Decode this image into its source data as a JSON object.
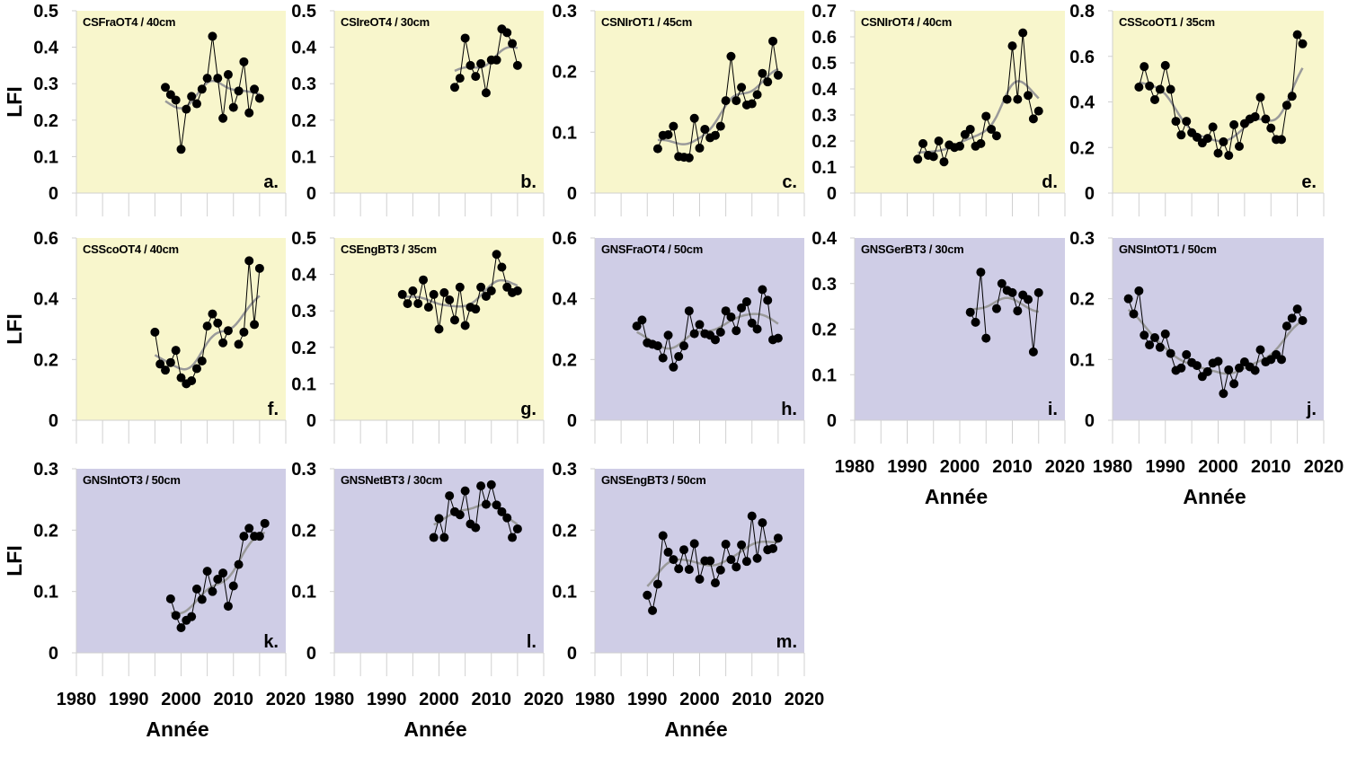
{
  "chart_data": {
    "type": "line",
    "ylabel": "LFI",
    "xlabel": "Année",
    "xlim": [
      1980,
      2020
    ],
    "xticks": [
      1980,
      1990,
      2000,
      2010,
      2020
    ],
    "colors": {
      "cs_background": "#f8f6cc",
      "gns_background": "#cfcde6",
      "points": "#000000",
      "trend": "#9a9a9a"
    },
    "panels": [
      {
        "id": "a.",
        "title": "CSFraOT4 / 40cm",
        "group": "cs",
        "ylim": [
          0,
          0.5
        ],
        "yticks": [
          0,
          0.1,
          0.2,
          0.3,
          0.4,
          0.5
        ],
        "start_year": 1997,
        "values": [
          0.29,
          0.27,
          0.255,
          0.12,
          0.23,
          0.265,
          0.245,
          0.285,
          0.315,
          0.43,
          0.315,
          0.205,
          0.325,
          0.235,
          0.28,
          0.36,
          0.22,
          0.285,
          0.26
        ]
      },
      {
        "id": "b.",
        "title": "CSIreOT4 / 30cm",
        "group": "cs",
        "ylim": [
          0,
          0.5
        ],
        "yticks": [
          0,
          0.1,
          0.2,
          0.3,
          0.4,
          0.5
        ],
        "start_year": 2003,
        "values": [
          0.29,
          0.315,
          0.425,
          0.35,
          0.32,
          0.355,
          0.275,
          0.365,
          0.365,
          0.45,
          0.44,
          0.41,
          0.35
        ]
      },
      {
        "id": "c.",
        "title": "CSNIrOT1 / 45cm",
        "group": "cs",
        "ylim": [
          0,
          0.3
        ],
        "yticks": [
          0,
          0.1,
          0.2,
          0.3
        ],
        "start_year": 1992,
        "values": [
          0.073,
          0.095,
          0.096,
          0.11,
          0.06,
          0.059,
          0.058,
          0.123,
          0.074,
          0.105,
          0.091,
          0.095,
          0.11,
          0.152,
          0.225,
          0.152,
          0.174,
          0.145,
          0.147,
          0.162,
          0.197,
          0.183,
          0.25,
          0.194
        ]
      },
      {
        "id": "d.",
        "title": "CSNIrOT4 / 40cm",
        "group": "cs",
        "ylim": [
          0,
          0.7
        ],
        "yticks": [
          0,
          0.1,
          0.2,
          0.3,
          0.4,
          0.5,
          0.6,
          0.7
        ],
        "start_year": 1992,
        "values": [
          0.13,
          0.19,
          0.145,
          0.14,
          0.2,
          0.12,
          0.185,
          0.175,
          0.18,
          0.225,
          0.245,
          0.18,
          0.19,
          0.295,
          0.245,
          0.22,
          null,
          0.36,
          0.565,
          0.36,
          0.615,
          0.375,
          0.285,
          0.315
        ]
      },
      {
        "id": "e.",
        "title": "CSScoOT1 / 35cm",
        "group": "cs",
        "ylim": [
          0,
          0.8
        ],
        "yticks": [
          0,
          0.2,
          0.4,
          0.6,
          0.8
        ],
        "start_year": 1985,
        "values": [
          0.465,
          0.555,
          0.47,
          0.41,
          0.455,
          0.56,
          0.455,
          0.315,
          0.255,
          0.315,
          0.265,
          0.245,
          0.22,
          0.24,
          0.29,
          0.175,
          0.225,
          0.165,
          0.3,
          0.205,
          0.305,
          0.325,
          0.335,
          0.42,
          0.325,
          0.285,
          0.235,
          0.235,
          0.385,
          0.425,
          0.695,
          0.655
        ]
      },
      {
        "id": "f.",
        "title": "CSScoOT4 / 40cm",
        "group": "cs",
        "ylim": [
          0,
          0.6
        ],
        "yticks": [
          0,
          0.2,
          0.4,
          0.6
        ],
        "start_year": 1995,
        "values": [
          0.29,
          0.185,
          0.165,
          0.19,
          0.23,
          0.14,
          0.12,
          0.13,
          0.17,
          0.195,
          0.31,
          0.35,
          0.32,
          0.255,
          0.295,
          null,
          0.25,
          0.29,
          0.525,
          0.315,
          0.5
        ]
      },
      {
        "id": "g.",
        "title": "CSEngBT3 / 35cm",
        "group": "cs",
        "ylim": [
          0,
          0.5
        ],
        "yticks": [
          0,
          0.1,
          0.2,
          0.3,
          0.4,
          0.5
        ],
        "start_year": 1993,
        "values": [
          0.345,
          0.32,
          0.355,
          0.32,
          0.385,
          0.31,
          0.345,
          0.25,
          0.35,
          0.33,
          0.275,
          0.365,
          0.26,
          0.31,
          0.305,
          0.365,
          0.34,
          0.355,
          0.455,
          0.42,
          0.365,
          0.35,
          0.355
        ]
      },
      {
        "id": "h.",
        "title": "GNSFraOT4 / 50cm",
        "group": "gns",
        "ylim": [
          0,
          0.6
        ],
        "yticks": [
          0,
          0.2,
          0.4,
          0.6
        ],
        "start_year": 1988,
        "values": [
          0.31,
          0.33,
          0.255,
          0.25,
          0.245,
          0.205,
          0.28,
          0.175,
          0.21,
          0.245,
          0.36,
          0.285,
          0.315,
          0.285,
          0.28,
          0.265,
          0.29,
          0.36,
          0.34,
          0.295,
          0.37,
          0.39,
          0.32,
          0.3,
          0.43,
          0.395,
          0.265,
          0.27
        ]
      },
      {
        "id": "i.",
        "title": "GNSGerBT3 / 30cm",
        "group": "gns",
        "ylim": [
          0,
          0.4
        ],
        "yticks": [
          0,
          0.1,
          0.2,
          0.3,
          0.4
        ],
        "start_year": 2002,
        "values": [
          0.237,
          0.215,
          0.325,
          0.18,
          null,
          0.245,
          0.3,
          0.285,
          0.28,
          0.24,
          0.275,
          0.265,
          0.15,
          0.28
        ]
      },
      {
        "id": "j.",
        "title": "GNSIntOT1 / 50cm",
        "group": "gns",
        "ylim": [
          0,
          0.3
        ],
        "yticks": [
          0,
          0.1,
          0.2,
          0.3
        ],
        "start_year": 1983,
        "values": [
          0.2,
          0.175,
          0.213,
          0.14,
          0.124,
          0.136,
          0.12,
          0.142,
          0.11,
          0.082,
          0.086,
          0.108,
          0.095,
          0.09,
          0.072,
          0.08,
          0.094,
          0.097,
          0.044,
          0.083,
          0.06,
          0.086,
          0.096,
          0.088,
          0.082,
          0.116,
          0.096,
          0.1,
          0.108,
          0.1,
          0.155,
          0.168,
          0.183,
          0.164
        ]
      },
      {
        "id": "k.",
        "title": "GNSIntOT3 / 50cm",
        "group": "gns",
        "ylim": [
          0,
          0.3
        ],
        "yticks": [
          0,
          0.1,
          0.2,
          0.3
        ],
        "start_year": 1998,
        "values": [
          0.088,
          0.061,
          0.041,
          0.053,
          0.059,
          0.104,
          0.087,
          0.133,
          0.1,
          0.12,
          0.13,
          0.076,
          0.109,
          0.144,
          0.19,
          0.203,
          0.19,
          0.19,
          0.211
        ]
      },
      {
        "id": "l.",
        "title": "GNSNetBT3 / 30cm",
        "group": "gns",
        "ylim": [
          0,
          0.3
        ],
        "yticks": [
          0,
          0.1,
          0.2,
          0.3
        ],
        "start_year": 1999,
        "values": [
          0.188,
          0.219,
          0.188,
          0.256,
          0.23,
          0.225,
          0.264,
          0.21,
          0.204,
          0.272,
          0.242,
          0.274,
          0.241,
          0.23,
          0.22,
          0.188,
          0.202
        ]
      },
      {
        "id": "m.",
        "title": "GNSEngBT3 / 50cm",
        "group": "gns",
        "ylim": [
          0,
          0.3
        ],
        "yticks": [
          0,
          0.1,
          0.2,
          0.3
        ],
        "start_year": 1990,
        "values": [
          0.094,
          0.069,
          0.112,
          0.191,
          0.164,
          0.152,
          0.137,
          0.168,
          0.136,
          0.178,
          0.12,
          0.15,
          0.15,
          0.114,
          0.135,
          0.177,
          0.152,
          0.14,
          0.176,
          0.149,
          0.223,
          0.154,
          0.212,
          0.168,
          0.17,
          0.187
        ]
      }
    ]
  }
}
